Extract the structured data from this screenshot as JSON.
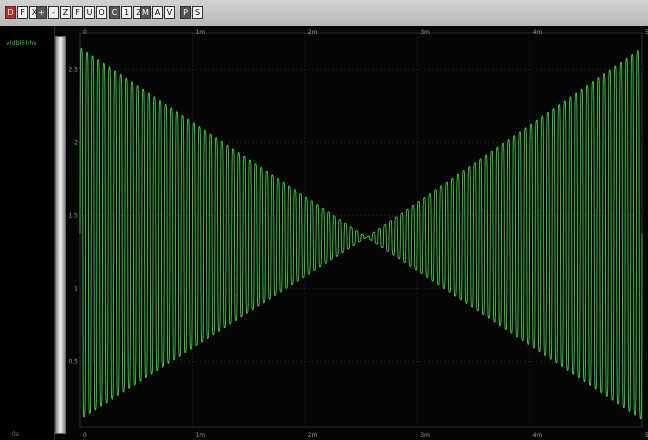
{
  "toolbar": {
    "groups": [
      {
        "name": "file-group",
        "buttons": [
          "D",
          "F",
          "X"
        ]
      },
      {
        "name": "zoom-group",
        "buttons": [
          "+",
          "-",
          "Z",
          "F",
          "U",
          "O"
        ]
      },
      {
        "name": "cursor-group",
        "buttons": [
          "C",
          "1",
          "2"
        ]
      },
      {
        "name": "measure-group",
        "buttons": [
          "M",
          "A",
          "V"
        ]
      },
      {
        "name": "config-group",
        "buttons": [
          "P",
          "S"
        ]
      }
    ]
  },
  "trace": {
    "name": "v(dbl5):hv",
    "color": "#3fd13f"
  },
  "cursor_readout": "0s",
  "chart_data": {
    "type": "line",
    "title": "",
    "xlabel": "",
    "ylabel": "",
    "x_tick_labels": [
      "0",
      "1m",
      "2m",
      "3m",
      "4m",
      "5m"
    ],
    "y_tick_labels": [
      "0.5",
      "1",
      "1.5",
      "2",
      "2.5"
    ],
    "xlim": [
      0,
      5
    ],
    "ylim": [
      0.05,
      2.75
    ],
    "grid": true,
    "series": [
      {
        "name": "v(dbl5):hv",
        "kind": "amplitude-modulated carrier",
        "carrier_cycles": 100,
        "envelope_upper": [
          [
            0.0,
            2.65
          ],
          [
            2.55,
            1.35
          ],
          [
            5.0,
            2.65
          ]
        ],
        "envelope_lower": [
          [
            0.0,
            0.1
          ],
          [
            2.55,
            1.35
          ],
          [
            5.0,
            0.1
          ]
        ]
      }
    ]
  }
}
